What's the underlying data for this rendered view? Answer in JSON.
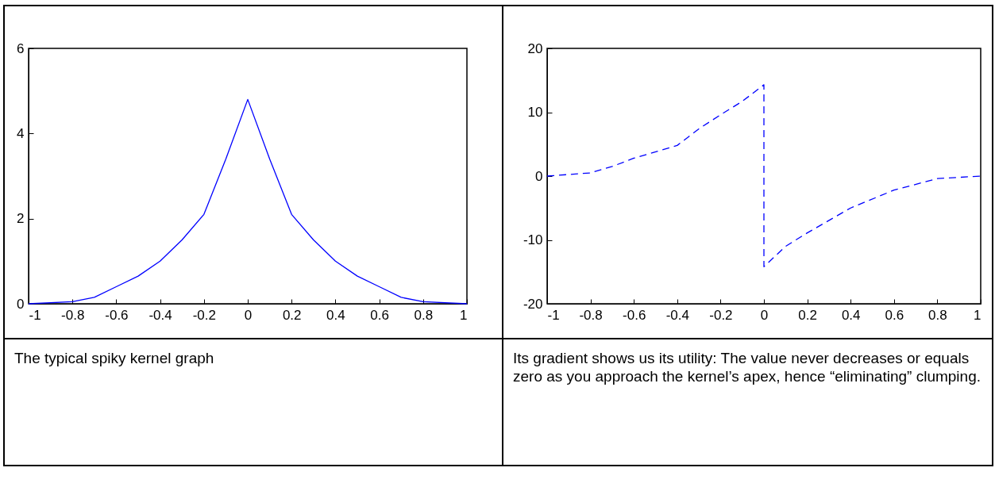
{
  "chart_data": [
    {
      "type": "line",
      "x": [
        -1,
        -0.8,
        -0.7,
        -0.6,
        -0.5,
        -0.4,
        -0.3,
        -0.2,
        -0.1,
        0,
        0.1,
        0.2,
        0.3,
        0.4,
        0.5,
        0.6,
        0.7,
        0.8,
        1
      ],
      "series": [
        {
          "color": "#0000ff",
          "values": [
            0,
            0.05,
            0.15,
            0.4,
            0.65,
            1.0,
            1.5,
            2.1,
            3.4,
            4.8,
            3.4,
            2.1,
            1.5,
            1.0,
            0.65,
            0.4,
            0.15,
            0.05,
            0
          ]
        }
      ],
      "xlim": [
        -1,
        1
      ],
      "xticks": [
        -1,
        -0.8,
        -0.6,
        -0.4,
        -0.2,
        0,
        0.2,
        0.4,
        0.6,
        0.8,
        1
      ],
      "ylim": [
        0,
        6
      ],
      "yticks": [
        0,
        2,
        4,
        6
      ],
      "grid": false,
      "marker": "none",
      "line_style": "solid",
      "annotations": [
        "The typical spiky kernel graph"
      ]
    },
    {
      "type": "line",
      "x": [
        -1,
        -0.8,
        -0.7,
        -0.6,
        -0.4,
        -0.3,
        -0.2,
        -0.1,
        0,
        0,
        0.1,
        0.2,
        0.4,
        0.6,
        0.8,
        1
      ],
      "series": [
        {
          "color": "#0000ff",
          "values": [
            0,
            0.5,
            1.5,
            2.8,
            4.8,
            7.4,
            9.6,
            11.7,
            14.3,
            -14.2,
            -11,
            -8.9,
            -5,
            -2.2,
            -0.4,
            0
          ]
        }
      ],
      "xlim": [
        -1,
        1
      ],
      "xticks": [
        -1,
        -0.8,
        -0.6,
        -0.4,
        -0.2,
        0,
        0.2,
        0.4,
        0.6,
        0.8,
        1
      ],
      "ylim": [
        -20,
        20
      ],
      "yticks": [
        -20,
        -10,
        0,
        10,
        20
      ],
      "grid": false,
      "marker": "none",
      "line_style": "dashed",
      "annotations": [
        "Its gradient shows us its utility: The value never decreases or equals zero as you approach the kernel’s apex, hence “eliminating” clumping."
      ]
    }
  ]
}
